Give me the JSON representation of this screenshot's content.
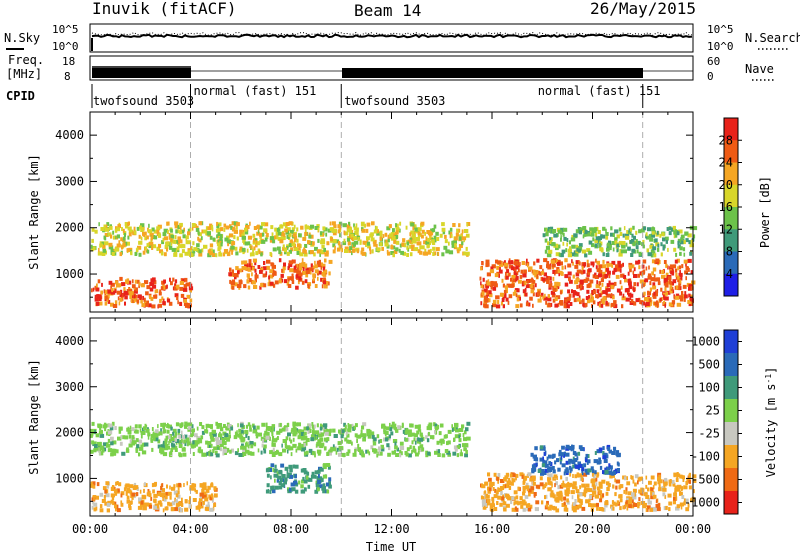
{
  "header": {
    "station": "Inuvik (fitACF)",
    "beam": "Beam 14",
    "date": "26/May/2015"
  },
  "noise_panel": {
    "left_label": "N.Sky",
    "right_label": "N.Search",
    "left_ticks": [
      "10^5",
      "10^0"
    ],
    "right_ticks": [
      "10^5",
      "10^0"
    ],
    "right_legend_line": "dotted"
  },
  "freq_panel": {
    "left_label_1": "Freq.",
    "left_label_2": "[MHz]",
    "right_label": "Nave",
    "left_ticks": [
      "18",
      "8"
    ],
    "right_ticks": [
      "60",
      "0"
    ]
  },
  "cpid": {
    "label": "CPID",
    "segments": [
      {
        "name": "twofsound 3503",
        "start_h": 0,
        "end_h": 4
      },
      {
        "name": "normal (fast) 151",
        "start_h": 4,
        "end_h": 10
      },
      {
        "name": "twofsound 3503",
        "start_h": 10,
        "end_h": 22
      },
      {
        "name": "normal (fast) 151",
        "start_h": 22,
        "end_h": 24
      }
    ],
    "segment_label_hours": [
      0,
      4,
      10,
      17.7
    ],
    "boundaries_h": [
      4,
      10,
      22
    ]
  },
  "chart_data": [
    {
      "type": "heatmap",
      "parameter": "Power",
      "ylabel": "Slant Range [km]",
      "xlabel": "Time UT",
      "xlim_hours": [
        0,
        24
      ],
      "ylim_km": [
        180,
        4500
      ],
      "yticks": [
        1000,
        2000,
        3000,
        4000
      ],
      "xtick_labels": [
        "00:00",
        "04:00",
        "08:00",
        "12:00",
        "16:00",
        "20:00",
        "00:00"
      ],
      "colorbar": {
        "label": "Power [dB]",
        "range": [
          0,
          32
        ],
        "ticks": [
          4,
          8,
          12,
          16,
          20,
          24,
          28
        ],
        "colors": [
          "#1f1fe6",
          "#2a6ab8",
          "#3f9a7a",
          "#6cc24a",
          "#d8d62a",
          "#f5a623",
          "#ef5b14",
          "#e8221a"
        ]
      },
      "features": [
        {
          "t0": 0.0,
          "t1": 4.0,
          "r0": 300,
          "r1": 900,
          "value": 26
        },
        {
          "t0": 0.0,
          "t1": 15.0,
          "r0": 1400,
          "r1": 2100,
          "value": 18
        },
        {
          "t0": 5.5,
          "t1": 9.5,
          "r0": 700,
          "r1": 1300,
          "value": 25
        },
        {
          "t0": 15.5,
          "t1": 24.0,
          "r0": 300,
          "r1": 1300,
          "value": 26
        },
        {
          "t0": 18.0,
          "t1": 24.0,
          "r0": 1400,
          "r1": 2000,
          "value": 13
        }
      ]
    },
    {
      "type": "heatmap",
      "parameter": "Velocity",
      "ylabel": "Slant Range [km]",
      "xlabel": "Time UT",
      "xlim_hours": [
        0,
        24
      ],
      "ylim_km": [
        180,
        4500
      ],
      "yticks": [
        1000,
        2000,
        3000,
        4000
      ],
      "xtick_labels": [
        "00:00",
        "04:00",
        "08:00",
        "12:00",
        "16:00",
        "20:00",
        "00:00"
      ],
      "colorbar": {
        "label": "Velocity [m s^-1]",
        "ticks": [
          "1000",
          "500",
          "100",
          "25",
          "-25",
          "-100",
          "-500",
          "-1000"
        ],
        "colors": [
          "#1f3fd6",
          "#2a6ab8",
          "#3f9a7a",
          "#7cd04a",
          "#c8c8c0",
          "#f5a623",
          "#ef6a14",
          "#e8221a"
        ]
      },
      "features": [
        {
          "t0": 0.0,
          "t1": 15.0,
          "r0": 1500,
          "r1": 2200,
          "value": "25"
        },
        {
          "t0": 0.0,
          "t1": 5.0,
          "r0": 300,
          "r1": 900,
          "value": "-100"
        },
        {
          "t0": 7.0,
          "t1": 9.5,
          "r0": 700,
          "r1": 1300,
          "value": "100"
        },
        {
          "t0": 15.5,
          "t1": 24.0,
          "r0": 300,
          "r1": 1100,
          "value": "-100"
        },
        {
          "t0": 17.5,
          "t1": 21.0,
          "r0": 1100,
          "r1": 1700,
          "value": "500"
        }
      ]
    }
  ]
}
